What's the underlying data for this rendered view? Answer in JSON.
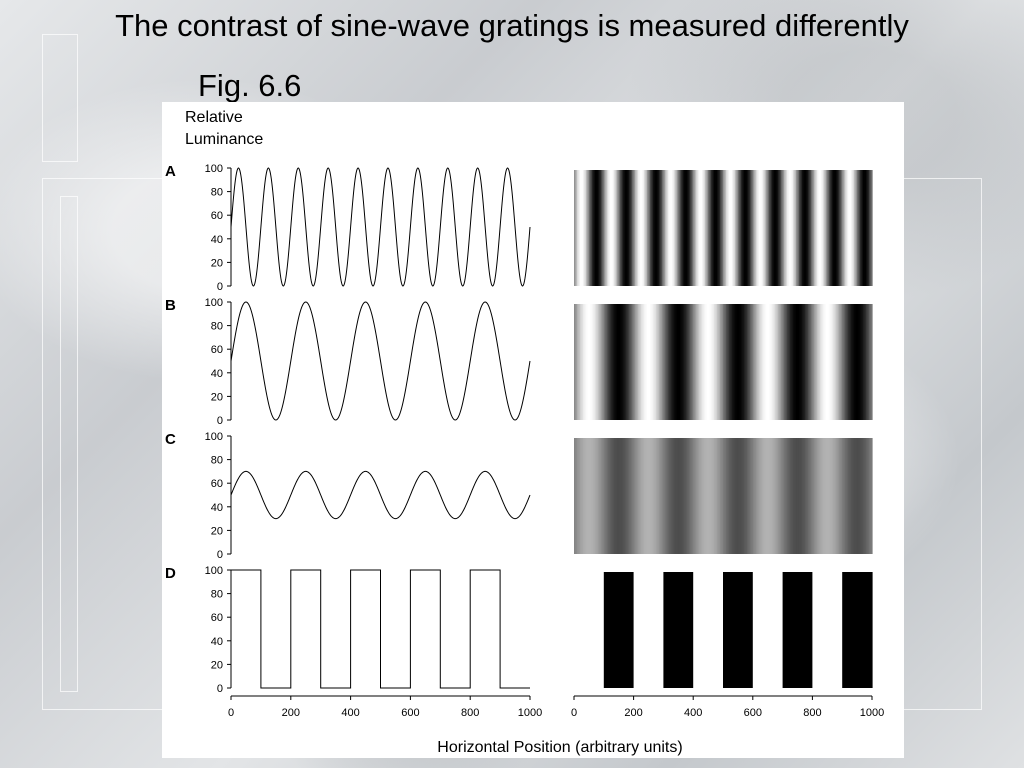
{
  "title": "The contrast of sine-wave gratings is measured differently",
  "subtitle": "Fig. 6.6",
  "chart_data": {
    "type": "line",
    "ylabel": [
      "Relative",
      "Luminance"
    ],
    "xlabel": "Horizontal Position (arbitrary units)",
    "xlim": [
      0,
      1000
    ],
    "ylim": [
      0,
      100
    ],
    "xticks": [
      0,
      200,
      400,
      600,
      800,
      1000
    ],
    "yticks": [
      0,
      20,
      40,
      60,
      80,
      100
    ],
    "grid": false,
    "panels": [
      {
        "label": "A",
        "waveform": "sine",
        "mean": 50,
        "amplitude": 50,
        "period": 100
      },
      {
        "label": "B",
        "waveform": "sine",
        "mean": 50,
        "amplitude": 50,
        "period": 200
      },
      {
        "label": "C",
        "waveform": "sine",
        "mean": 50,
        "amplitude": 20,
        "period": 200
      },
      {
        "label": "D",
        "waveform": "square",
        "low": 0,
        "high": 100,
        "period": 200,
        "x": [
          0,
          100,
          100,
          200,
          200,
          300,
          300,
          400,
          400,
          500,
          500,
          600,
          600,
          700,
          700,
          800,
          800,
          900,
          900,
          1000
        ],
        "y": [
          100,
          100,
          0,
          0,
          100,
          100,
          0,
          0,
          100,
          100,
          0,
          0,
          100,
          100,
          0,
          0,
          100,
          100,
          0,
          0
        ]
      }
    ]
  }
}
